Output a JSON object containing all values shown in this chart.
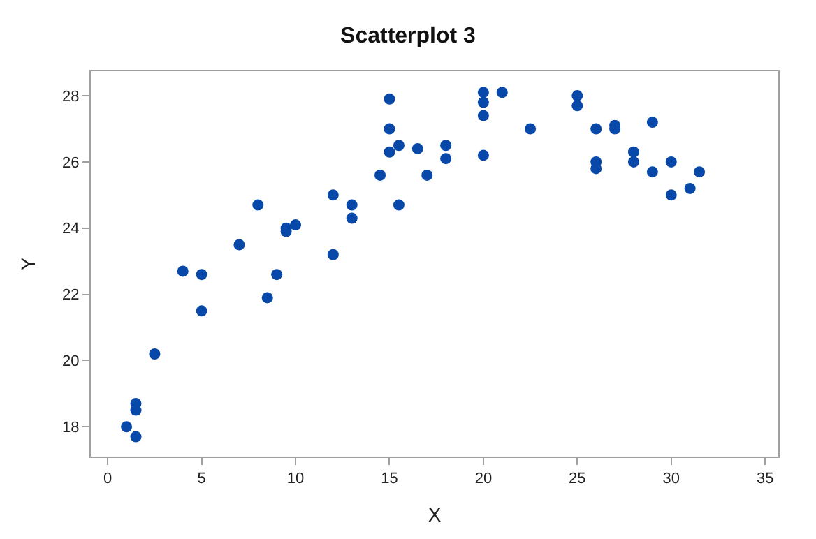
{
  "chart_data": {
    "type": "scatter",
    "title": "Scatterplot 3",
    "xlabel": "X",
    "ylabel": "Y",
    "xlim": [
      -0.9,
      35.7
    ],
    "ylim": [
      17.1,
      28.74
    ],
    "xticks": [
      0,
      5,
      10,
      15,
      20,
      25,
      30,
      35
    ],
    "yticks": [
      18,
      20,
      22,
      24,
      26,
      28
    ],
    "marker": "circle",
    "series": [
      {
        "color": "#0748a8",
        "x": [
          1,
          1.5,
          1.5,
          1.5,
          2.5,
          4,
          5,
          5,
          7,
          8,
          8.5,
          9,
          9.5,
          9.5,
          10,
          12,
          12,
          13,
          13,
          14.5,
          15,
          15,
          15,
          15.5,
          15.5,
          16.5,
          17,
          18,
          18,
          20,
          20,
          20,
          20,
          21,
          22.5,
          25,
          25,
          26,
          26,
          26,
          27,
          27,
          28,
          28,
          29,
          29,
          30,
          30,
          31,
          31.5
        ],
        "values": [
          18,
          18.7,
          18.5,
          17.7,
          20.2,
          22.7,
          22.6,
          21.5,
          23.5,
          24.7,
          21.9,
          22.6,
          23.9,
          24,
          24.1,
          25,
          23.2,
          24.7,
          24.3,
          25.6,
          27.9,
          27,
          26.3,
          26.5,
          24.7,
          26.4,
          25.6,
          26.5,
          26.1,
          28.1,
          27.8,
          27.4,
          26.2,
          28.1,
          27,
          28,
          27.7,
          27,
          26,
          25.8,
          27.1,
          27,
          26.3,
          26,
          27.2,
          25.7,
          26,
          25,
          25.2,
          25.7
        ]
      }
    ]
  }
}
